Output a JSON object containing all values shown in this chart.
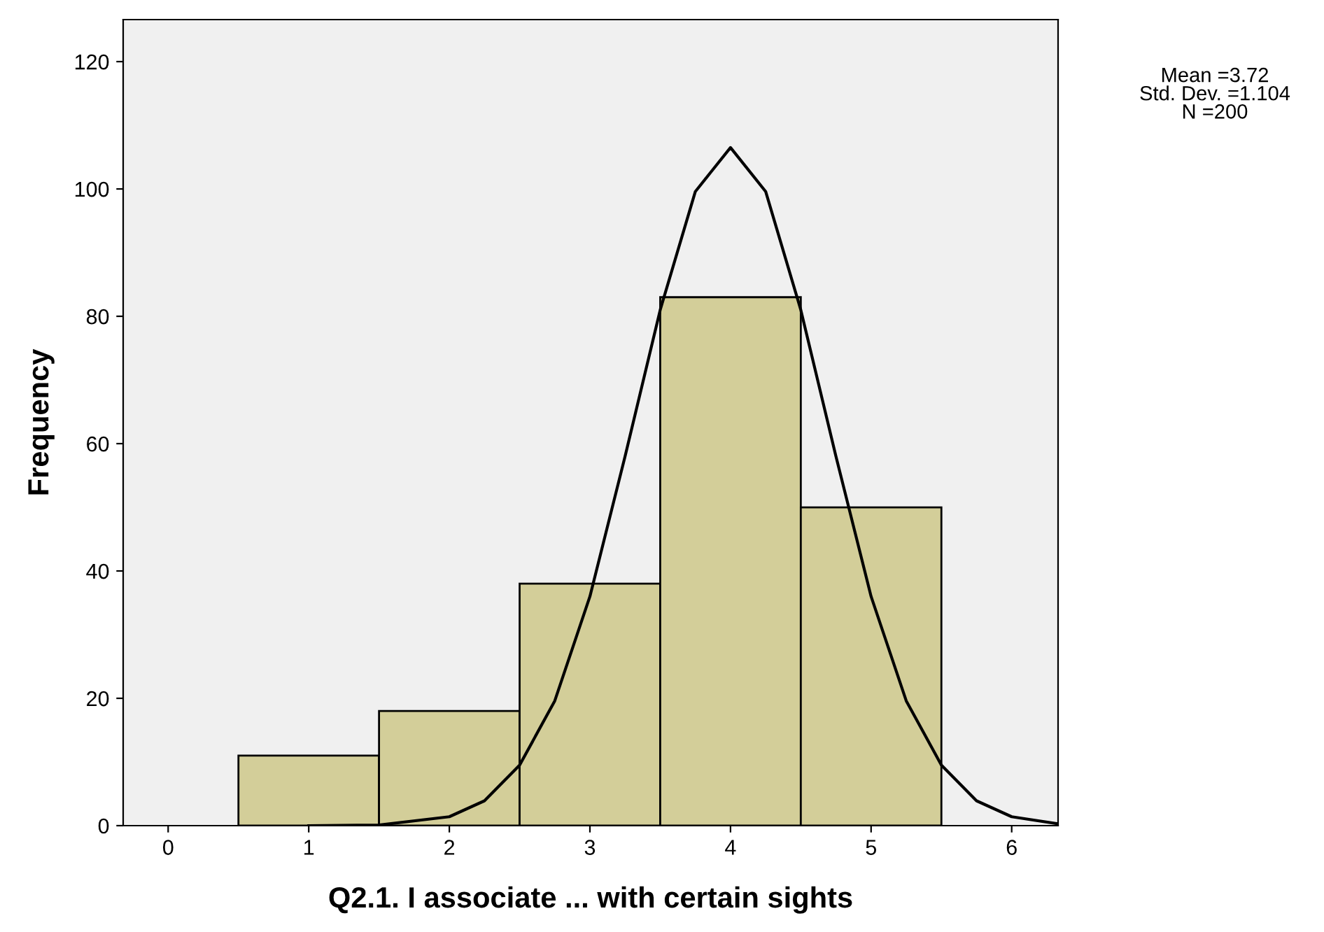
{
  "chart_data": {
    "type": "histogram",
    "xlabel": "Q2.1. I associate ... with certain sights",
    "ylabel": "Frequency",
    "bins": [
      0.5,
      1.5,
      2.5,
      3.5,
      4.5,
      5.5
    ],
    "values": [
      11,
      18,
      38,
      83,
      50
    ],
    "color": "#d3ce99",
    "series": [
      {
        "type": "line",
        "color": "#000000",
        "x": [
          1.0,
          1.5,
          2.0,
          2.25,
          2.5,
          2.75,
          3.0,
          3.25,
          3.5,
          3.75,
          4.0,
          4.25,
          4.5,
          4.75,
          5.0,
          5.25,
          5.5,
          5.75,
          6.0,
          6.33
        ],
        "values": [
          0,
          0.1,
          1.4,
          3.9,
          9.5,
          19.6,
          36,
          58,
          81,
          99.6,
          106.5,
          99.6,
          81,
          58,
          36,
          19.6,
          9.5,
          3.9,
          1.4,
          0.3
        ]
      }
    ],
    "xlim": [
      -0.32,
      6.33
    ],
    "xticks": [
      0,
      1,
      2,
      3,
      4,
      5,
      6
    ],
    "ylim": [
      0,
      126.6
    ],
    "yticks": [
      0,
      20,
      40,
      60,
      80,
      100,
      120
    ],
    "grid": false,
    "annotations": [
      "Mean =3.72\nStd. Dev. =1.104\nN =200"
    ]
  }
}
